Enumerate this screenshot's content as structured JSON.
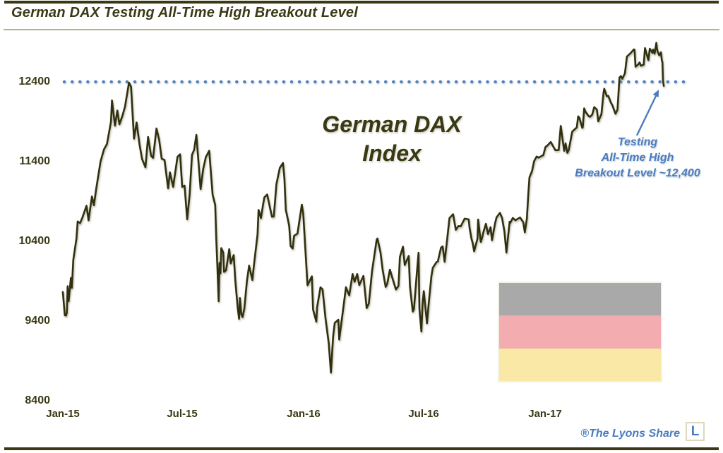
{
  "colors": {
    "ink_olive": "#3a3914",
    "line_olive": "#31300e",
    "accent_blue": "#4a7cbe",
    "dotted_blue": "#4f81bd",
    "flag_gray": "#a9a9a9",
    "flag_pink": "#f3adb0",
    "flag_yellow": "#fae9a6"
  },
  "chart_data": {
    "type": "line",
    "title": "German DAX Testing All-Time High Breakout Level",
    "watermark": {
      "line1": "German DAX",
      "line2": "Index"
    },
    "annotation": {
      "line1": "Testing",
      "line2": "All-Time High",
      "line3": "Breakout Level ~12,400"
    },
    "credit": "®The Lyons Share",
    "logo_letter": "L",
    "x_tick_labels": [
      "Jan-15",
      "Jul-15",
      "Jan-16",
      "Jul-16",
      "Jan-17"
    ],
    "y_tick_labels": [
      "12400",
      "11400",
      "10400",
      "9400",
      "8400"
    ],
    "ylim": [
      8400,
      13000
    ],
    "x_unit": "months since Jan-2015",
    "x_range": [
      "Jan-2015",
      "Jun-2017"
    ],
    "breakout_level": 12400,
    "grid": false,
    "legend": false,
    "series": [
      {
        "name": "German DAX Index",
        "points": [
          [
            0.0,
            9765
          ],
          [
            0.1,
            9473
          ],
          [
            0.16,
            9469
          ],
          [
            0.2,
            9506
          ],
          [
            0.24,
            9837
          ],
          [
            0.29,
            9648
          ],
          [
            0.4,
            9941
          ],
          [
            0.45,
            9817
          ],
          [
            0.52,
            10167
          ],
          [
            0.68,
            10436
          ],
          [
            0.74,
            10650
          ],
          [
            0.86,
            10628
          ],
          [
            0.97,
            10694
          ],
          [
            1.18,
            10846
          ],
          [
            1.28,
            10664
          ],
          [
            1.45,
            10963
          ],
          [
            1.55,
            10853
          ],
          [
            1.66,
            11050
          ],
          [
            1.88,
            11402
          ],
          [
            2.05,
            11551
          ],
          [
            2.2,
            11621
          ],
          [
            2.4,
            11902
          ],
          [
            2.45,
            12167
          ],
          [
            2.6,
            11850
          ],
          [
            2.72,
            12040
          ],
          [
            2.82,
            11868
          ],
          [
            2.96,
            11966
          ],
          [
            3.1,
            12088
          ],
          [
            3.3,
            12390
          ],
          [
            3.4,
            12338
          ],
          [
            3.55,
            11688
          ],
          [
            3.68,
            11890
          ],
          [
            3.82,
            11620
          ],
          [
            3.95,
            11433
          ],
          [
            4.12,
            11328
          ],
          [
            4.25,
            11710
          ],
          [
            4.4,
            11472
          ],
          [
            4.5,
            11447
          ],
          [
            4.67,
            11815
          ],
          [
            4.8,
            11678
          ],
          [
            4.93,
            11436
          ],
          [
            5.07,
            11420
          ],
          [
            5.25,
            11064
          ],
          [
            5.34,
            11265
          ],
          [
            5.5,
            11083
          ],
          [
            5.72,
            11460
          ],
          [
            5.85,
            11492
          ],
          [
            5.95,
            11083
          ],
          [
            6.07,
            11099
          ],
          [
            6.2,
            10676
          ],
          [
            6.32,
            10980
          ],
          [
            6.44,
            11484
          ],
          [
            6.55,
            11550
          ],
          [
            6.66,
            11735
          ],
          [
            6.87,
            11056
          ],
          [
            7.0,
            11309
          ],
          [
            7.13,
            11456
          ],
          [
            7.3,
            11536
          ],
          [
            7.47,
            10985
          ],
          [
            7.6,
            10856
          ],
          [
            7.65,
            10432
          ],
          [
            7.7,
            10124
          ],
          [
            7.77,
            9648
          ],
          [
            7.81,
            10128
          ],
          [
            7.86,
            9998
          ],
          [
            7.9,
            10315
          ],
          [
            8.0,
            10259
          ],
          [
            8.04,
            10016
          ],
          [
            8.14,
            10038
          ],
          [
            8.3,
            10303
          ],
          [
            8.37,
            10123
          ],
          [
            8.52,
            10227
          ],
          [
            8.6,
            9916
          ],
          [
            8.72,
            9571
          ],
          [
            8.79,
            9428
          ],
          [
            8.83,
            9689
          ],
          [
            8.9,
            9483
          ],
          [
            8.96,
            9450
          ],
          [
            9.05,
            9553
          ],
          [
            9.18,
            9902
          ],
          [
            9.29,
            10096
          ],
          [
            9.45,
            9915
          ],
          [
            9.53,
            10104
          ],
          [
            9.71,
            10492
          ],
          [
            9.76,
            10794
          ],
          [
            9.88,
            10692
          ],
          [
            9.98,
            10850
          ],
          [
            10.05,
            10951
          ],
          [
            10.19,
            10988
          ],
          [
            10.32,
            10832
          ],
          [
            10.43,
            10708
          ],
          [
            10.52,
            10713
          ],
          [
            10.65,
            11119
          ],
          [
            10.82,
            11320
          ],
          [
            10.98,
            11382
          ],
          [
            11.05,
            11190
          ],
          [
            11.12,
            10789
          ],
          [
            11.16,
            10752
          ],
          [
            11.29,
            10592
          ],
          [
            11.36,
            10340
          ],
          [
            11.46,
            10310
          ],
          [
            11.53,
            10469
          ],
          [
            11.7,
            10497
          ],
          [
            11.92,
            10860
          ],
          [
            11.99,
            10743
          ],
          [
            12.1,
            10283
          ],
          [
            12.2,
            9849
          ],
          [
            12.42,
            9961
          ],
          [
            12.48,
            9545
          ],
          [
            12.64,
            9392
          ],
          [
            12.68,
            9574
          ],
          [
            12.85,
            9823
          ],
          [
            12.95,
            9798
          ],
          [
            13.1,
            9435
          ],
          [
            13.26,
            9122
          ],
          [
            13.37,
            8753
          ],
          [
            13.48,
            9207
          ],
          [
            13.56,
            9377
          ],
          [
            13.74,
            9417
          ],
          [
            13.78,
            9167
          ],
          [
            13.95,
            9495
          ],
          [
            14.12,
            9824
          ],
          [
            14.28,
            9723
          ],
          [
            14.45,
            9990
          ],
          [
            14.55,
            9892
          ],
          [
            14.68,
            9990
          ],
          [
            14.78,
            9851
          ],
          [
            14.99,
            9966
          ],
          [
            15.15,
            9563
          ],
          [
            15.26,
            9622
          ],
          [
            15.42,
            10026
          ],
          [
            15.65,
            10421
          ],
          [
            15.69,
            10435
          ],
          [
            15.84,
            10259
          ],
          [
            15.95,
            10039
          ],
          [
            16.1,
            9828
          ],
          [
            16.18,
            9870
          ],
          [
            16.31,
            10045
          ],
          [
            16.42,
            9953
          ],
          [
            16.61,
            9796
          ],
          [
            16.74,
            9842
          ],
          [
            16.81,
            10205
          ],
          [
            16.96,
            10333
          ],
          [
            17.05,
            10103
          ],
          [
            17.25,
            10217
          ],
          [
            17.31,
            9835
          ],
          [
            17.45,
            9519
          ],
          [
            17.51,
            9550
          ],
          [
            17.64,
            9962
          ],
          [
            17.74,
            10257
          ],
          [
            17.78,
            9557
          ],
          [
            17.88,
            9269
          ],
          [
            17.94,
            9612
          ],
          [
            18.0,
            9776
          ],
          [
            18.16,
            9373
          ],
          [
            18.25,
            9630
          ],
          [
            18.38,
            9964
          ],
          [
            18.45,
            10068
          ],
          [
            18.64,
            10142
          ],
          [
            18.7,
            10147
          ],
          [
            18.86,
            10320
          ],
          [
            18.94,
            10337
          ],
          [
            19.04,
            10144
          ],
          [
            19.14,
            10367
          ],
          [
            19.28,
            10692
          ],
          [
            19.46,
            10740
          ],
          [
            19.6,
            10544
          ],
          [
            19.73,
            10592
          ],
          [
            19.84,
            10588
          ],
          [
            20.04,
            10684
          ],
          [
            20.24,
            10675
          ],
          [
            20.28,
            10573
          ],
          [
            20.38,
            10431
          ],
          [
            20.44,
            10378
          ],
          [
            20.51,
            10276
          ],
          [
            20.68,
            10436
          ],
          [
            20.71,
            10674
          ],
          [
            20.84,
            10393
          ],
          [
            20.9,
            10438
          ],
          [
            20.97,
            10511
          ],
          [
            21.1,
            10620
          ],
          [
            21.2,
            10490
          ],
          [
            21.33,
            10577
          ],
          [
            21.4,
            10414
          ],
          [
            21.56,
            10631
          ],
          [
            21.63,
            10701
          ],
          [
            21.8,
            10757
          ],
          [
            21.9,
            10696
          ],
          [
            22.02,
            10526
          ],
          [
            22.12,
            10259
          ],
          [
            22.28,
            10646
          ],
          [
            22.31,
            10630
          ],
          [
            22.44,
            10693
          ],
          [
            22.57,
            10664
          ],
          [
            22.8,
            10699
          ],
          [
            22.96,
            10640
          ],
          [
            23.04,
            10513
          ],
          [
            23.14,
            10684
          ],
          [
            23.21,
            10986
          ],
          [
            23.27,
            11203
          ],
          [
            23.4,
            11284
          ],
          [
            23.5,
            11404
          ],
          [
            23.63,
            11464
          ],
          [
            23.73,
            11450
          ],
          [
            23.96,
            11481
          ],
          [
            24.07,
            11584
          ],
          [
            24.16,
            11599
          ],
          [
            24.33,
            11646
          ],
          [
            24.56,
            11543
          ],
          [
            24.73,
            11545
          ],
          [
            24.83,
            11848
          ],
          [
            25.0,
            11535
          ],
          [
            25.07,
            11628
          ],
          [
            25.16,
            11510
          ],
          [
            25.23,
            11543
          ],
          [
            25.4,
            11774
          ],
          [
            25.48,
            11794
          ],
          [
            25.63,
            11828
          ],
          [
            25.7,
            11967
          ],
          [
            25.76,
            11948
          ],
          [
            25.9,
            11823
          ],
          [
            25.93,
            11834
          ],
          [
            26.0,
            12067
          ],
          [
            26.06,
            12027
          ],
          [
            26.23,
            11967
          ],
          [
            26.3,
            11963
          ],
          [
            26.4,
            11990
          ],
          [
            26.5,
            12083
          ],
          [
            26.63,
            12053
          ],
          [
            26.7,
            11904
          ],
          [
            26.86,
            11996
          ],
          [
            26.96,
            12256
          ],
          [
            27.0,
            12313
          ],
          [
            27.13,
            12218
          ],
          [
            27.2,
            12225
          ],
          [
            27.33,
            12139
          ],
          [
            27.4,
            12109
          ],
          [
            27.56,
            12000
          ],
          [
            27.66,
            12049
          ],
          [
            27.76,
            12455
          ],
          [
            27.83,
            12473
          ],
          [
            27.9,
            12438
          ],
          [
            28.03,
            12508
          ],
          [
            28.13,
            12717
          ],
          [
            28.3,
            12757
          ],
          [
            28.48,
            12807
          ],
          [
            28.51,
            12804
          ],
          [
            28.56,
            12590
          ],
          [
            28.7,
            12620
          ],
          [
            28.76,
            12643
          ],
          [
            28.83,
            12602
          ],
          [
            28.97,
            12615
          ],
          [
            29.03,
            12823
          ],
          [
            29.2,
            12673
          ],
          [
            29.27,
            12816
          ],
          [
            29.4,
            12765
          ],
          [
            29.44,
            12806
          ],
          [
            29.51,
            12753
          ],
          [
            29.6,
            12889
          ],
          [
            29.63,
            12814
          ],
          [
            29.67,
            12775
          ],
          [
            29.74,
            12733
          ],
          [
            29.83,
            12771
          ],
          [
            29.87,
            12671
          ],
          [
            29.9,
            12648
          ],
          [
            29.93,
            12416
          ],
          [
            29.97,
            12350
          ]
        ]
      }
    ]
  }
}
